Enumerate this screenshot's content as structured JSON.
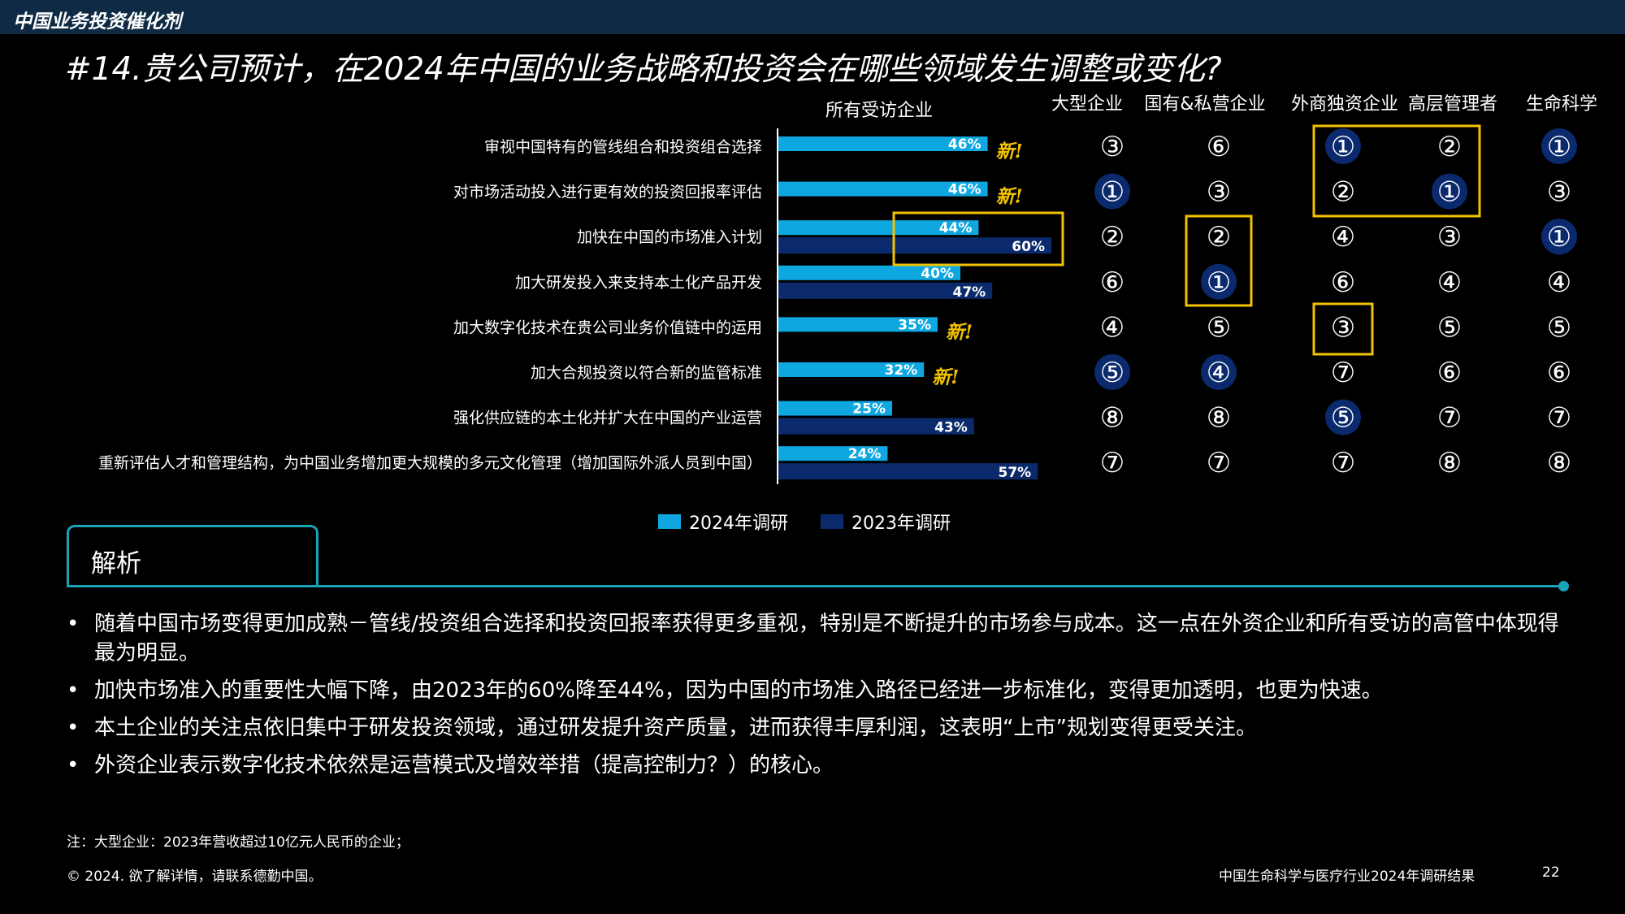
{
  "header": {
    "section": "中国业务投资催化剂"
  },
  "title": "#14.贵公司预计，在2024年中国的业务战略和投资会在哪些领域发生调整或变化?",
  "columns": [
    "所有受访企业",
    "大型企业",
    "国有&私营企业",
    "外商独资企业",
    "高层管理者",
    "生命科学"
  ],
  "new_label": "新!",
  "colors": {
    "bar2024": "#0fa7e0",
    "bar2023": "#0a2a6b",
    "highlight": "#f2c200",
    "circle": "#ffffff",
    "filled_circle": "#0b2a6e",
    "accent": "#1aa3b6"
  },
  "chart_data": {
    "type": "bar",
    "orientation": "horizontal",
    "categories": [
      "审视中国特有的管线组合和投资组合选择",
      "对市场活动投入进行更有效的投资回报率评估",
      "加快在中国的市场准入计划",
      "加大研发投入来支持本土化产品开发",
      "加大数字化技术在贵公司业务价值链中的运用",
      "加大合规投资以符合新的监管标准",
      "强化供应链的本土化并扩大在中国的产业运营",
      "重新评估人才和管理结构，为中国业务增加更大规模的多元文化管理（增加国际外派人员到中国）"
    ],
    "series": [
      {
        "name": "2024年调研",
        "values": [
          46,
          46,
          44,
          40,
          35,
          32,
          25,
          24
        ]
      },
      {
        "name": "2023年调研",
        "values": [
          null,
          null,
          60,
          47,
          null,
          null,
          43,
          57
        ]
      }
    ],
    "data_labels": [
      "46%",
      "46%",
      "44%",
      "40%",
      "35%",
      "32%",
      "25%",
      "24%"
    ],
    "data_labels_2023": [
      "",
      "",
      "60%",
      "47%",
      "",
      "",
      "43%",
      "57%"
    ],
    "new_flags": [
      true,
      true,
      false,
      false,
      true,
      true,
      false,
      false
    ],
    "highlight_rows": [
      2
    ],
    "xlim": [
      0,
      100
    ],
    "legend_position": "bottom"
  },
  "ranks": {
    "labels": [
      "①",
      "②",
      "③",
      "④",
      "⑤",
      "⑥",
      "⑦",
      "⑧"
    ],
    "rows": [
      [
        3,
        6,
        1,
        2,
        1
      ],
      [
        1,
        3,
        2,
        1,
        3
      ],
      [
        2,
        2,
        4,
        3,
        1
      ],
      [
        6,
        1,
        6,
        4,
        4
      ],
      [
        4,
        5,
        3,
        5,
        5
      ],
      [
        5,
        4,
        7,
        6,
        6
      ],
      [
        8,
        8,
        5,
        7,
        7
      ],
      [
        7,
        7,
        7,
        8,
        8
      ]
    ],
    "filled": [
      [
        false,
        false,
        true,
        false,
        true
      ],
      [
        true,
        false,
        false,
        true,
        false
      ],
      [
        false,
        false,
        false,
        false,
        true
      ],
      [
        false,
        true,
        false,
        false,
        false
      ],
      [
        false,
        false,
        false,
        false,
        false
      ],
      [
        true,
        true,
        false,
        false,
        false
      ],
      [
        false,
        false,
        true,
        false,
        false
      ],
      [
        false,
        false,
        false,
        false,
        false
      ]
    ]
  },
  "legend": {
    "item2024": "2024年调研",
    "item2023": "2023年调研"
  },
  "analysis": {
    "title": "解析",
    "bullets": [
      "随着中国市场变得更加成熟－管线/投资组合选择和投资回报率获得更多重视，特别是不断提升的市场参与成本。这一点在外资企业和所有受访的高管中体现得最为明显。",
      "加快市场准入的重要性大幅下降，由2023年的60%降至44%，因为中国的市场准入路径已经进一步标准化，变得更加透明，也更为快速。",
      "本土企业的关注点依旧集中于研发投资领域，通过研发提升资产质量，进而获得丰厚利润，这表明“上市”规划变得更受关注。",
      "外资企业表示数字化技术依然是运营模式及增效举措（提高控制力？）的核心。"
    ]
  },
  "footnote": "注：大型企业：2023年营收超过10亿元人民币的企业；",
  "copyright": "© 2024. 欲了解详情，请联系德勤中国。",
  "footer_title": "中国生命科学与医疗行业2024年调研结果",
  "page_number": "22"
}
